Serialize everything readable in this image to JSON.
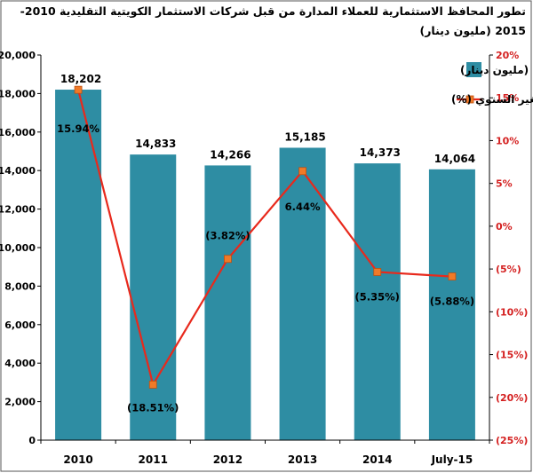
{
  "chart_data": {
    "type": "bar",
    "title": "تطور المحافظ الاستثمارية للعملاء المدارة من قبل شركات الاستثمار الكويتية التقليدية 2010-2015 (مليون دينار)",
    "categories": [
      "2010",
      "2011",
      "2012",
      "2013",
      "2014",
      "July-15"
    ],
    "series": [
      {
        "name": "محافظ استثمارية للعملاء (مليون دينار)",
        "type": "bar",
        "axis": "left",
        "values": [
          18202,
          14833,
          14266,
          15185,
          14373,
          14064
        ],
        "labels": [
          "18,202",
          "14,833",
          "14,266",
          "15,185",
          "14,373",
          "14,064"
        ],
        "color": "#2e8da3"
      },
      {
        "name": "نسبة التغير السنوي (%)",
        "type": "line",
        "axis": "right",
        "values": [
          15.94,
          -18.51,
          -3.82,
          6.44,
          -5.35,
          -5.88
        ],
        "labels": [
          "15.94%",
          "(18.51%)",
          "(3.82%)",
          "6.44%",
          "(5.35%)",
          "(5.88%)"
        ],
        "color": "#e8291c",
        "marker_color": "#f07a28"
      }
    ],
    "y_left": {
      "min": 0,
      "max": 20000,
      "step": 2000,
      "ticks": [
        "0",
        "2,000",
        "4,000",
        "6,000",
        "8,000",
        "10,000",
        "12,000",
        "14,000",
        "16,000",
        "18,000",
        "20,000"
      ]
    },
    "y_right": {
      "min": -25,
      "max": 20,
      "step": 5,
      "ticks": [
        "(25%)",
        "(20%)",
        "(15%)",
        "(10%)",
        "(5%)",
        "0%",
        "5%",
        "10%",
        "15%",
        "20%"
      ],
      "color": "#d42020"
    },
    "grid": false,
    "legend": "top-right"
  }
}
